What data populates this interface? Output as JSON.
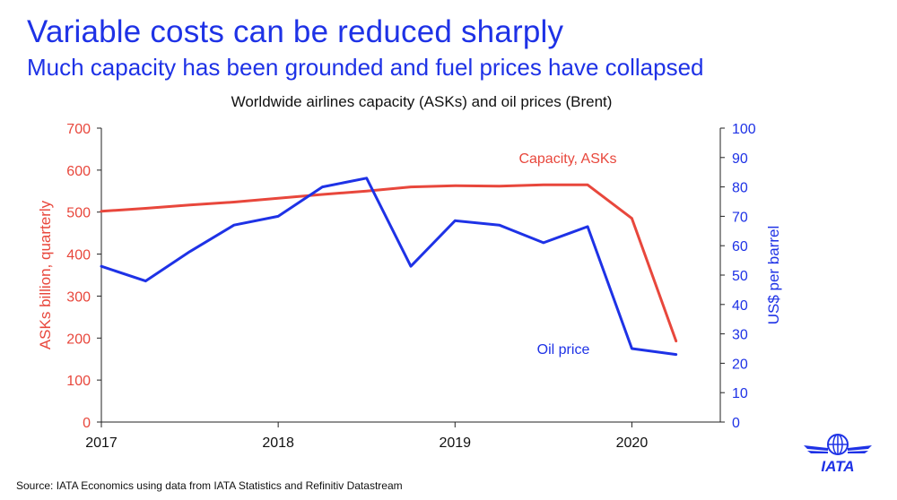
{
  "header": {
    "title": "Variable costs can be reduced sharply",
    "subtitle": "Much capacity has been grounded and fuel prices have collapsed"
  },
  "footer": {
    "source": "Source: IATA Economics using data from IATA Statistics and Refinitiv Datastream",
    "logo_text": "IATA"
  },
  "colors": {
    "accent": "#1e32e6",
    "capacity": "#e8473c",
    "oil": "#1e32e6",
    "axis": "#222222"
  },
  "chart_data": {
    "type": "line",
    "title": "Worldwide airlines capacity (ASKs) and oil prices (Brent)",
    "x_tick_labels": [
      "2017",
      "2018",
      "2019",
      "2020"
    ],
    "xlim": [
      2017.0,
      2020.5
    ],
    "grid": false,
    "y_left": {
      "label": "ASKs billion, quarterly",
      "ylim": [
        0,
        700
      ],
      "ticks": [
        "0",
        "100",
        "200",
        "300",
        "400",
        "500",
        "600",
        "700"
      ]
    },
    "y_right": {
      "label": "US$ per barrel",
      "ylim": [
        0,
        100
      ],
      "ticks": [
        "0",
        "10",
        "20",
        "30",
        "40",
        "50",
        "60",
        "70",
        "80",
        "90",
        "100"
      ]
    },
    "series": [
      {
        "name": "Capacity, ASKs",
        "axis": "left",
        "x": [
          2017.0,
          2017.25,
          2017.5,
          2017.75,
          2018.0,
          2018.25,
          2018.5,
          2018.75,
          2019.0,
          2019.25,
          2019.5,
          2019.75,
          2020.0,
          2020.25
        ],
        "values": [
          502,
          509,
          517,
          524,
          533,
          542,
          550,
          560,
          563,
          562,
          565,
          565,
          485,
          193
        ]
      },
      {
        "name": "Oil price",
        "axis": "right",
        "x": [
          2017.0,
          2017.25,
          2017.5,
          2017.75,
          2018.0,
          2018.25,
          2018.5,
          2018.75,
          2019.0,
          2019.25,
          2019.5,
          2019.75,
          2020.0,
          2020.25
        ],
        "values": [
          53,
          48,
          58,
          67,
          70,
          80,
          83,
          53,
          68.5,
          67,
          61,
          66.5,
          25,
          23
        ]
      }
    ]
  }
}
